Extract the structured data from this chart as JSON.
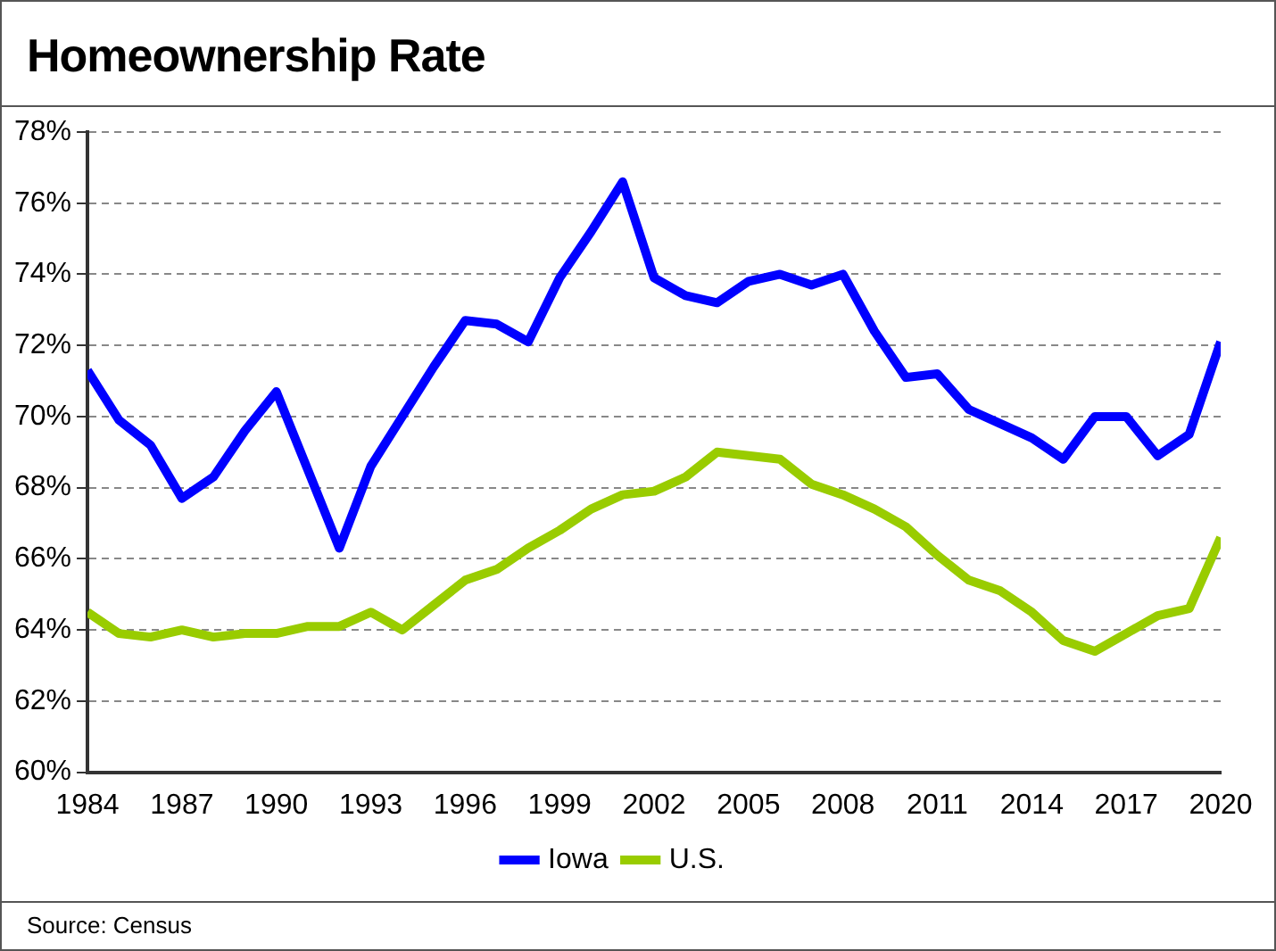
{
  "chart_data": {
    "type": "line",
    "title": "Homeownership Rate",
    "x": [
      1984,
      1985,
      1986,
      1987,
      1988,
      1989,
      1990,
      1991,
      1992,
      1993,
      1994,
      1995,
      1996,
      1997,
      1998,
      1999,
      2000,
      2001,
      2002,
      2003,
      2004,
      2005,
      2006,
      2007,
      2008,
      2009,
      2010,
      2011,
      2012,
      2013,
      2014,
      2015,
      2016,
      2017,
      2018,
      2019,
      2020
    ],
    "series": [
      {
        "name": "Iowa",
        "color": "#0000ff",
        "values": [
          71.3,
          69.9,
          69.2,
          67.7,
          68.3,
          69.6,
          70.7,
          68.5,
          66.3,
          68.6,
          70.0,
          71.4,
          72.7,
          72.6,
          72.1,
          73.9,
          75.2,
          76.6,
          73.9,
          73.4,
          73.2,
          73.8,
          74.0,
          73.7,
          74.0,
          72.4,
          71.1,
          71.2,
          70.2,
          69.8,
          69.4,
          68.8,
          70.0,
          70.0,
          68.9,
          69.5,
          72.1
        ]
      },
      {
        "name": "U.S.",
        "color": "#99cc00",
        "values": [
          64.5,
          63.9,
          63.8,
          64.0,
          63.8,
          63.9,
          63.9,
          64.1,
          64.1,
          64.5,
          64.0,
          64.7,
          65.4,
          65.7,
          66.3,
          66.8,
          67.4,
          67.8,
          67.9,
          68.3,
          69.0,
          68.9,
          68.8,
          68.1,
          67.8,
          67.4,
          66.9,
          66.1,
          65.4,
          65.1,
          64.5,
          63.7,
          63.4,
          63.9,
          64.4,
          64.6,
          66.6
        ]
      }
    ],
    "xlim": [
      1984,
      2020
    ],
    "xticks": [
      1984,
      1987,
      1990,
      1993,
      1996,
      1999,
      2002,
      2005,
      2008,
      2011,
      2014,
      2017,
      2020
    ],
    "ylim": [
      60,
      78
    ],
    "yticks": [
      {
        "value": 60,
        "label": "60%"
      },
      {
        "value": 62,
        "label": "62%"
      },
      {
        "value": 64,
        "label": "64%"
      },
      {
        "value": 66,
        "label": "66%"
      },
      {
        "value": 68,
        "label": "68%"
      },
      {
        "value": 70,
        "label": "70%"
      },
      {
        "value": 72,
        "label": "72%"
      },
      {
        "value": 74,
        "label": "74%"
      },
      {
        "value": 76,
        "label": "76%"
      },
      {
        "value": 78,
        "label": "78%"
      }
    ],
    "grid": "y",
    "legend": "bottom",
    "marker": "none",
    "line_style": "solid",
    "annotations": [
      "Source: Census"
    ]
  }
}
